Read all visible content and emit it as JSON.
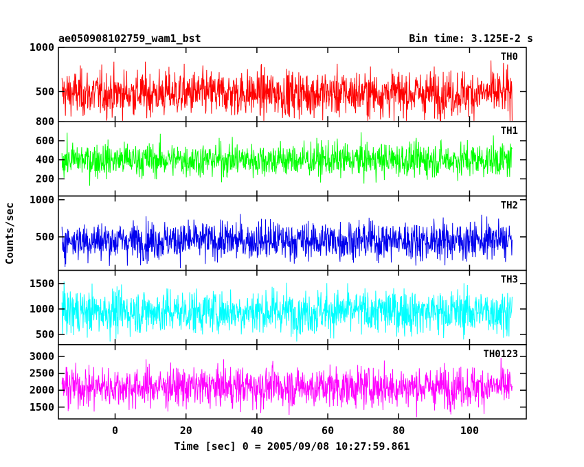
{
  "chart_data": {
    "type": "line",
    "title": "ae050908102759_wam1_bst",
    "subtitle": "Bin time: 3.125E-2 s",
    "xlabel": "Time [sec] 0 = 2005/09/08 10:27:59.861",
    "ylabel": "Counts/sec",
    "xlim": [
      -16,
      116
    ],
    "x_range_data": [
      -15,
      112
    ],
    "xticks": [
      0,
      20,
      40,
      60,
      80,
      100
    ],
    "grid": false,
    "legend": "panel labels top-right",
    "series": [
      {
        "name": "TH0",
        "color": "#ff0000",
        "ylim": [
          160,
          1000
        ],
        "yticks": [
          500,
          1000
        ],
        "mean": 480,
        "spread": 130,
        "min": 170,
        "max": 1000
      },
      {
        "name": "TH1",
        "color": "#00ff00",
        "ylim": [
          20,
          800
        ],
        "yticks": [
          200,
          400,
          600,
          800
        ],
        "mean": 400,
        "spread": 90,
        "min": 60,
        "max": 780
      },
      {
        "name": "TH2",
        "color": "#0000ee",
        "ylim": [
          50,
          1050
        ],
        "yticks": [
          500,
          1000
        ],
        "mean": 450,
        "spread": 130,
        "min": 80,
        "max": 1000
      },
      {
        "name": "TH3",
        "color": "#00ffff",
        "ylim": [
          300,
          1760
        ],
        "yticks": [
          500,
          1000,
          1500
        ],
        "mean": 950,
        "spread": 220,
        "min": 360,
        "max": 1700
      },
      {
        "name": "TH0123",
        "color": "#ff00ff",
        "ylim": [
          1150,
          3350
        ],
        "yticks": [
          1500,
          2000,
          2500,
          3000
        ],
        "mean": 2100,
        "spread": 300,
        "min": 1200,
        "max": 3200
      }
    ]
  }
}
